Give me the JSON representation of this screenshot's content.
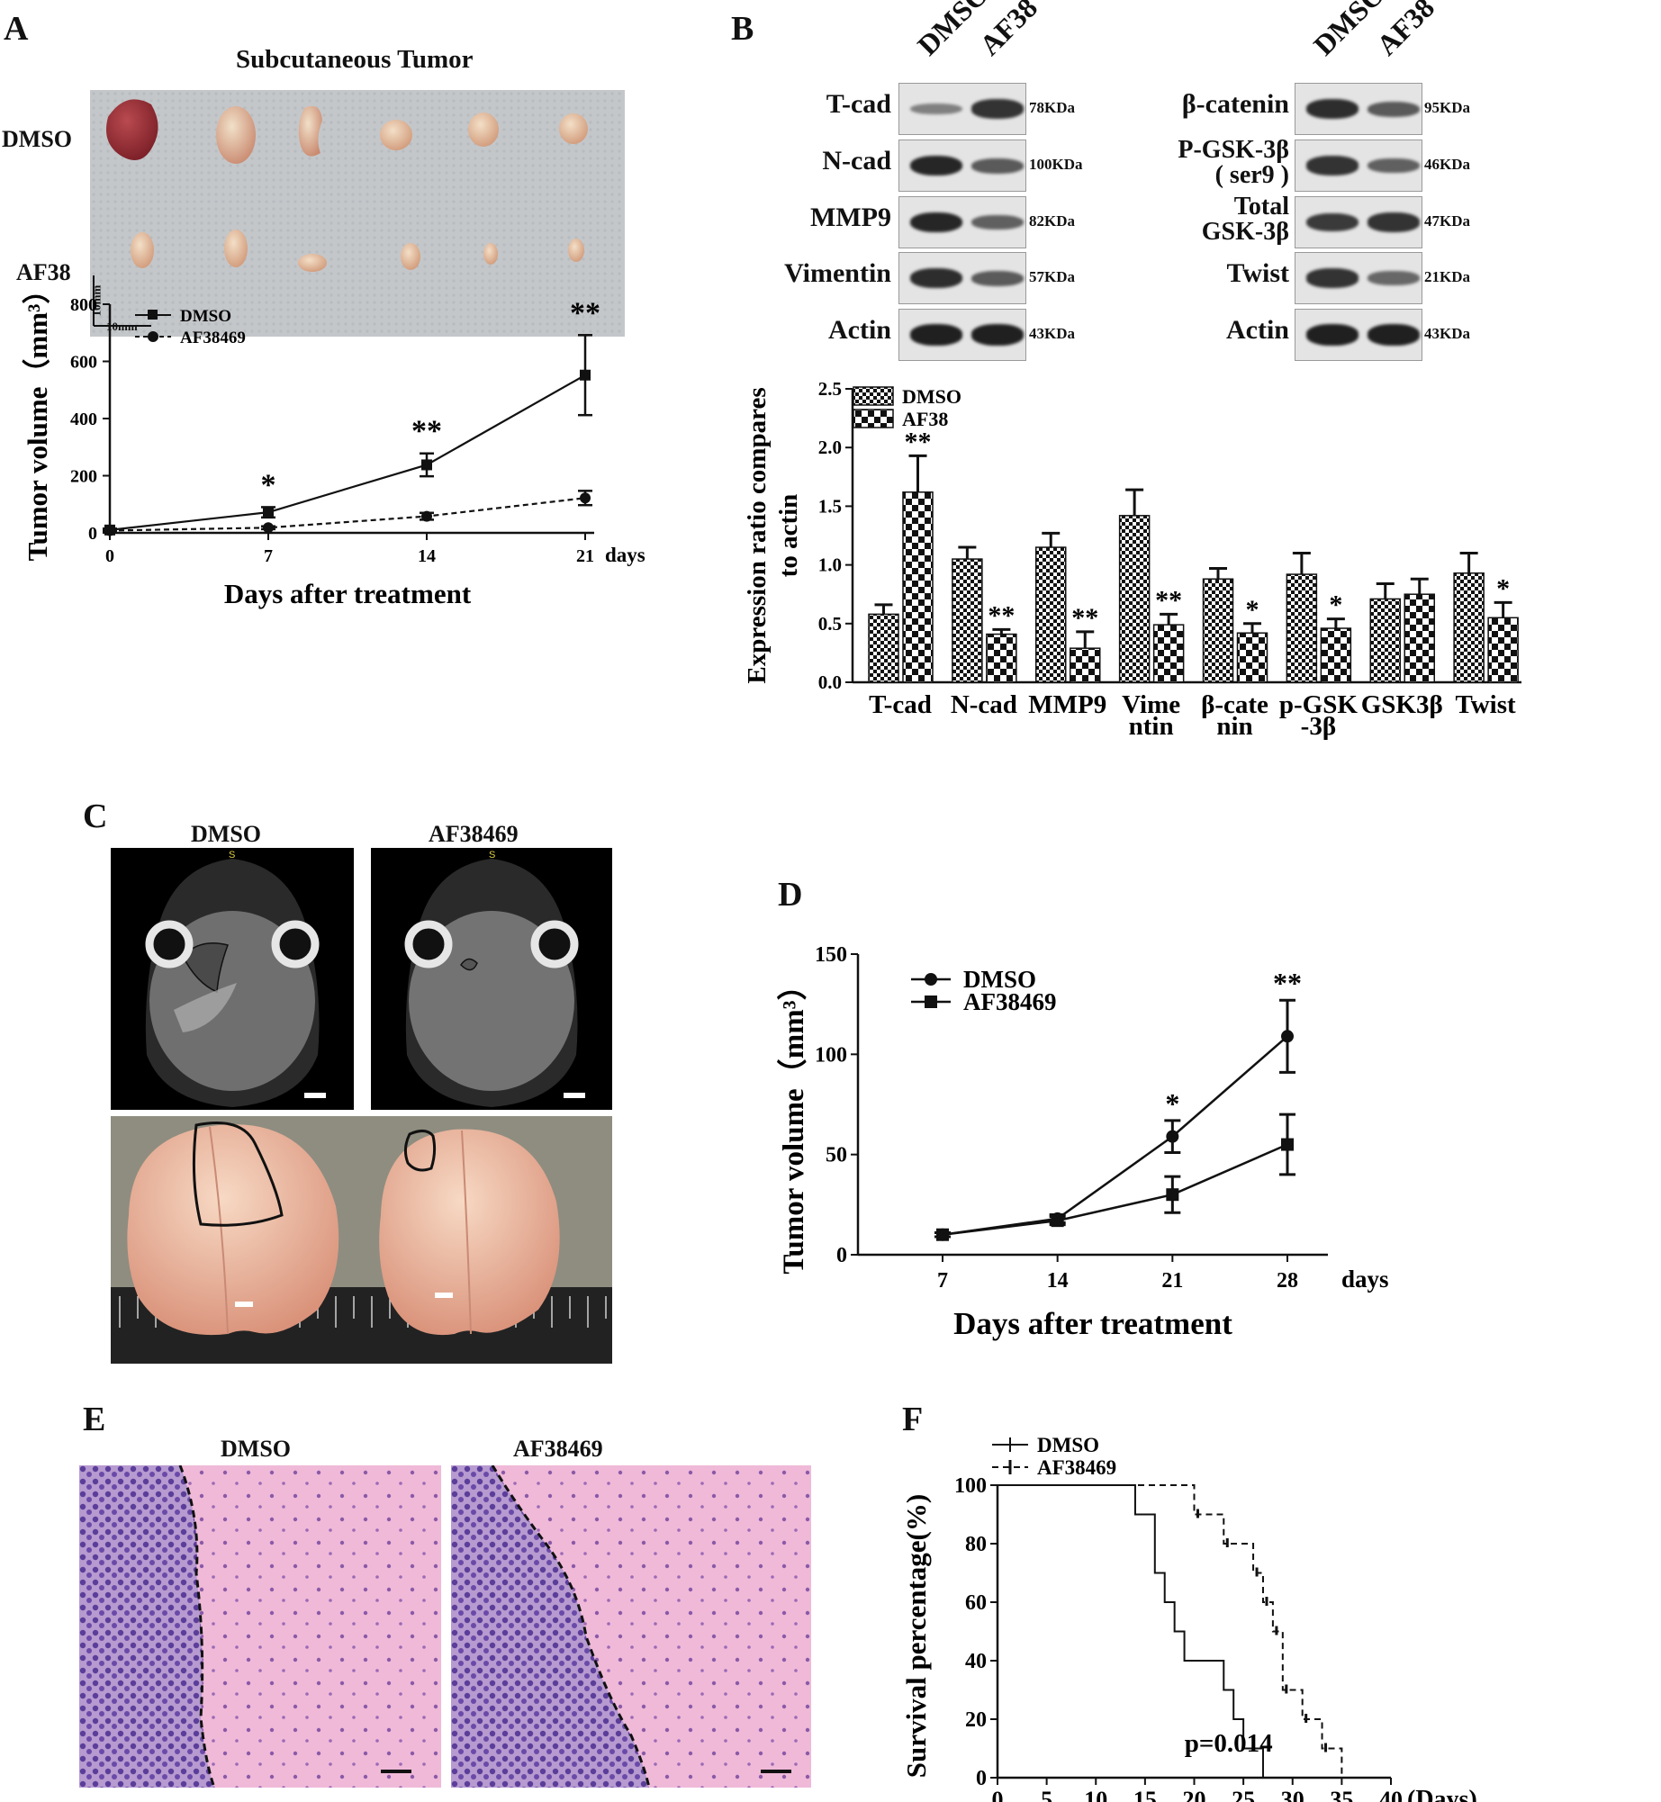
{
  "panels": {
    "A": {
      "label": "A",
      "title": "Subcutaneous Tumor",
      "row_labels": [
        "DMSO",
        "AF38"
      ],
      "scale_labels": [
        "10mm",
        "10mm"
      ]
    },
    "B": {
      "label": "B",
      "lane_labels": [
        "DMSO",
        "AF38"
      ],
      "left_blot": [
        {
          "protein": "T-cad",
          "size": "78KDa"
        },
        {
          "protein": "N-cad",
          "size": "100KDa"
        },
        {
          "protein": "MMP9",
          "size": "82KDa"
        },
        {
          "protein": "Vimentin",
          "size": "57KDa"
        },
        {
          "protein": "Actin",
          "size": "43KDa"
        }
      ],
      "right_blot": [
        {
          "protein": "β-catenin",
          "size": "95KDa"
        },
        {
          "protein": "P-GSK-3β",
          "protein2": "( ser9 )",
          "size": "46KDa"
        },
        {
          "protein": "Total",
          "protein2": "GSK-3β",
          "size": "47KDa"
        },
        {
          "protein": "Twist",
          "size": "21KDa"
        },
        {
          "protein": "Actin",
          "size": "43KDa"
        }
      ]
    },
    "C": {
      "label": "C",
      "titles": [
        "DMSO",
        "AF38469"
      ],
      "mri_marker": "S"
    },
    "D": {
      "label": "D"
    },
    "E": {
      "label": "E",
      "titles": [
        "DMSO",
        "AF38469"
      ]
    },
    "F": {
      "label": "F"
    }
  },
  "chart_data": [
    {
      "id": "A-tumor-growth",
      "type": "line",
      "x": [
        0,
        7,
        14,
        21
      ],
      "x_tick_labels": [
        "0",
        "7",
        "14",
        "21"
      ],
      "x_unit_label": "days",
      "xlabel": "Days after treatment",
      "ylabel": "Tumor volume（mm³）",
      "ylim": [
        0,
        800
      ],
      "y_ticks": [
        "0",
        "200",
        "400",
        "600",
        "800"
      ],
      "legend": "top-left",
      "series": [
        {
          "name": "DMSO",
          "values": [
            10,
            72,
            238,
            552
          ],
          "errors": [
            5,
            18,
            40,
            140
          ],
          "marker": "square",
          "line": "solid"
        },
        {
          "name": "AF38469",
          "values": [
            8,
            18,
            58,
            122
          ],
          "errors": [
            3,
            5,
            12,
            25
          ],
          "marker": "circle",
          "line": "dashed"
        }
      ],
      "annotations": [
        {
          "x": 7,
          "text": "*"
        },
        {
          "x": 14,
          "text": "**"
        },
        {
          "x": 21,
          "text": "**"
        }
      ]
    },
    {
      "id": "B-expression-bars",
      "type": "bar",
      "categories": [
        "T-cad",
        "N-cad",
        "MMP9",
        "Vime ntin",
        "β-cate nin",
        "p-GSK -3β",
        "GSK3β",
        "Twist"
      ],
      "category_lines": [
        [
          "T-cad"
        ],
        [
          "N-cad"
        ],
        [
          "MMP9"
        ],
        [
          "Vime",
          "ntin"
        ],
        [
          "β-cate",
          "nin"
        ],
        [
          "p-GSK",
          "-3β"
        ],
        [
          "GSK3β"
        ],
        [
          "Twist"
        ]
      ],
      "ylabel_lines": [
        "Expression ratio compares",
        "to actin"
      ],
      "ylim": [
        0,
        2.5
      ],
      "y_ticks": [
        "0.0",
        "0.5",
        "1.0",
        "1.5",
        "2.0",
        "2.5"
      ],
      "legend": "top-left",
      "series": [
        {
          "name": "DMSO",
          "values": [
            0.58,
            1.05,
            1.15,
            1.42,
            0.88,
            0.92,
            0.71,
            0.93
          ],
          "errors": [
            0.08,
            0.1,
            0.12,
            0.22,
            0.09,
            0.18,
            0.13,
            0.17
          ]
        },
        {
          "name": "AF38",
          "values": [
            1.62,
            0.41,
            0.29,
            0.49,
            0.42,
            0.46,
            0.75,
            0.55
          ],
          "errors": [
            0.31,
            0.04,
            0.14,
            0.09,
            0.08,
            0.08,
            0.13,
            0.13
          ]
        }
      ],
      "annotations": [
        "**",
        "**",
        "**",
        "**",
        "*",
        "*",
        "",
        "*"
      ]
    },
    {
      "id": "D-intracranial-volume",
      "type": "line",
      "x": [
        7,
        14,
        21,
        28
      ],
      "x_tick_labels": [
        "7",
        "14",
        "21",
        "28"
      ],
      "x_unit_label": "days",
      "xlabel": "Days after treatment",
      "ylabel": "Tumor volume（mm³）",
      "ylim": [
        0,
        150
      ],
      "y_ticks": [
        "0",
        "50",
        "100",
        "150"
      ],
      "legend": "top-left",
      "series": [
        {
          "name": "DMSO",
          "values": [
            10,
            18,
            59,
            109
          ],
          "errors": [
            1,
            2,
            8,
            18
          ],
          "marker": "circle"
        },
        {
          "name": "AF38469",
          "values": [
            10,
            17,
            30,
            55
          ],
          "errors": [
            1,
            2,
            9,
            15
          ],
          "marker": "square"
        }
      ],
      "annotations": [
        {
          "x": 21,
          "text": "*"
        },
        {
          "x": 28,
          "text": "**"
        }
      ]
    },
    {
      "id": "F-survival",
      "type": "line",
      "xlabel": "(Days)",
      "ylabel": "Survival percentage(%)",
      "xlim": [
        0,
        40
      ],
      "ylim": [
        0,
        100
      ],
      "x_ticks": [
        "0",
        "5",
        "10",
        "15",
        "20",
        "25",
        "30",
        "35",
        "40"
      ],
      "y_ticks": [
        "0",
        "20",
        "40",
        "60",
        "80",
        "100"
      ],
      "legend": "top-left",
      "series": [
        {
          "name": "DMSO",
          "line": "solid",
          "steps": [
            [
              0,
              100
            ],
            [
              14,
              100
            ],
            [
              14,
              90
            ],
            [
              16,
              90
            ],
            [
              16,
              70
            ],
            [
              17,
              70
            ],
            [
              17,
              60
            ],
            [
              18,
              60
            ],
            [
              18,
              50
            ],
            [
              19,
              50
            ],
            [
              19,
              40
            ],
            [
              23,
              40
            ],
            [
              23,
              30
            ],
            [
              24,
              30
            ],
            [
              24,
              20
            ],
            [
              25,
              20
            ],
            [
              25,
              10
            ],
            [
              27,
              10
            ],
            [
              27,
              0
            ]
          ]
        },
        {
          "name": "AF38469",
          "line": "dashed",
          "steps": [
            [
              0,
              100
            ],
            [
              20,
              100
            ],
            [
              20,
              90
            ],
            [
              23,
              90
            ],
            [
              23,
              80
            ],
            [
              26,
              80
            ],
            [
              26,
              70
            ],
            [
              27,
              70
            ],
            [
              27,
              60
            ],
            [
              28,
              60
            ],
            [
              28,
              50
            ],
            [
              29,
              50
            ],
            [
              29,
              30
            ],
            [
              31,
              30
            ],
            [
              31,
              20
            ],
            [
              33,
              20
            ],
            [
              33,
              10
            ],
            [
              35,
              10
            ],
            [
              35,
              0
            ]
          ]
        }
      ],
      "annotation": "p=0.014"
    }
  ]
}
